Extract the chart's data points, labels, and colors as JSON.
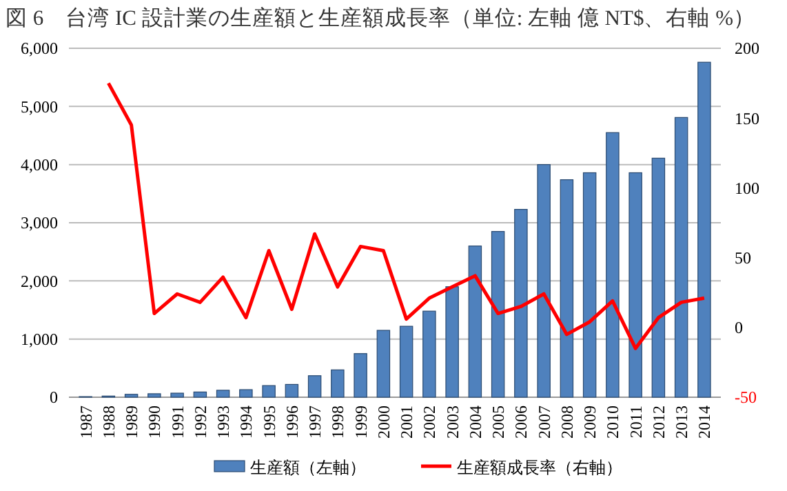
{
  "chart_data": {
    "type": "bar",
    "title": "図 6　台湾 IC 設計業の生産額と生産額成長率（単位: 左軸 億 NT$、右軸 %）",
    "categories": [
      "1987",
      "1988",
      "1989",
      "1990",
      "1991",
      "1992",
      "1993",
      "1994",
      "1995",
      "1996",
      "1997",
      "1998",
      "1999",
      "2000",
      "2001",
      "2002",
      "2003",
      "2004",
      "2005",
      "2006",
      "2007",
      "2008",
      "2009",
      "2010",
      "2011",
      "2012",
      "2013",
      "2014"
    ],
    "series": [
      {
        "name": "生産額（左軸）",
        "color": "#4f81bd",
        "values": [
          10,
          20,
          50,
          60,
          70,
          90,
          120,
          130,
          200,
          220,
          370,
          470,
          750,
          1150,
          1220,
          1480,
          1900,
          2600,
          2850,
          3230,
          4000,
          3740,
          3860,
          4550,
          3860,
          4110,
          4810,
          5760
        ]
      },
      {
        "name": "生産額成長率（右軸）",
        "type": "line",
        "axis": "y2",
        "color": "#ff0000",
        "values": [
          null,
          175,
          145,
          10,
          24,
          18,
          36,
          7,
          55,
          13,
          67,
          29,
          58,
          55,
          6,
          21,
          29,
          37,
          10,
          15,
          24,
          -5,
          4,
          19,
          -15,
          7,
          18,
          21
        ]
      }
    ],
    "ylim": [
      0,
      6000
    ],
    "yticks": [
      {
        "value": 0,
        "label": "0"
      },
      {
        "value": 1000,
        "label": "1,000"
      },
      {
        "value": 2000,
        "label": "2,000"
      },
      {
        "value": 3000,
        "label": "3,000"
      },
      {
        "value": 4000,
        "label": "4,000"
      },
      {
        "value": 5000,
        "label": "5,000"
      },
      {
        "value": 6000,
        "label": "6,000"
      }
    ],
    "y2lim": [
      -50,
      200
    ],
    "y2ticks": [
      -50,
      0,
      50,
      100,
      150,
      200
    ],
    "grid": "y",
    "legend": "bottom"
  }
}
